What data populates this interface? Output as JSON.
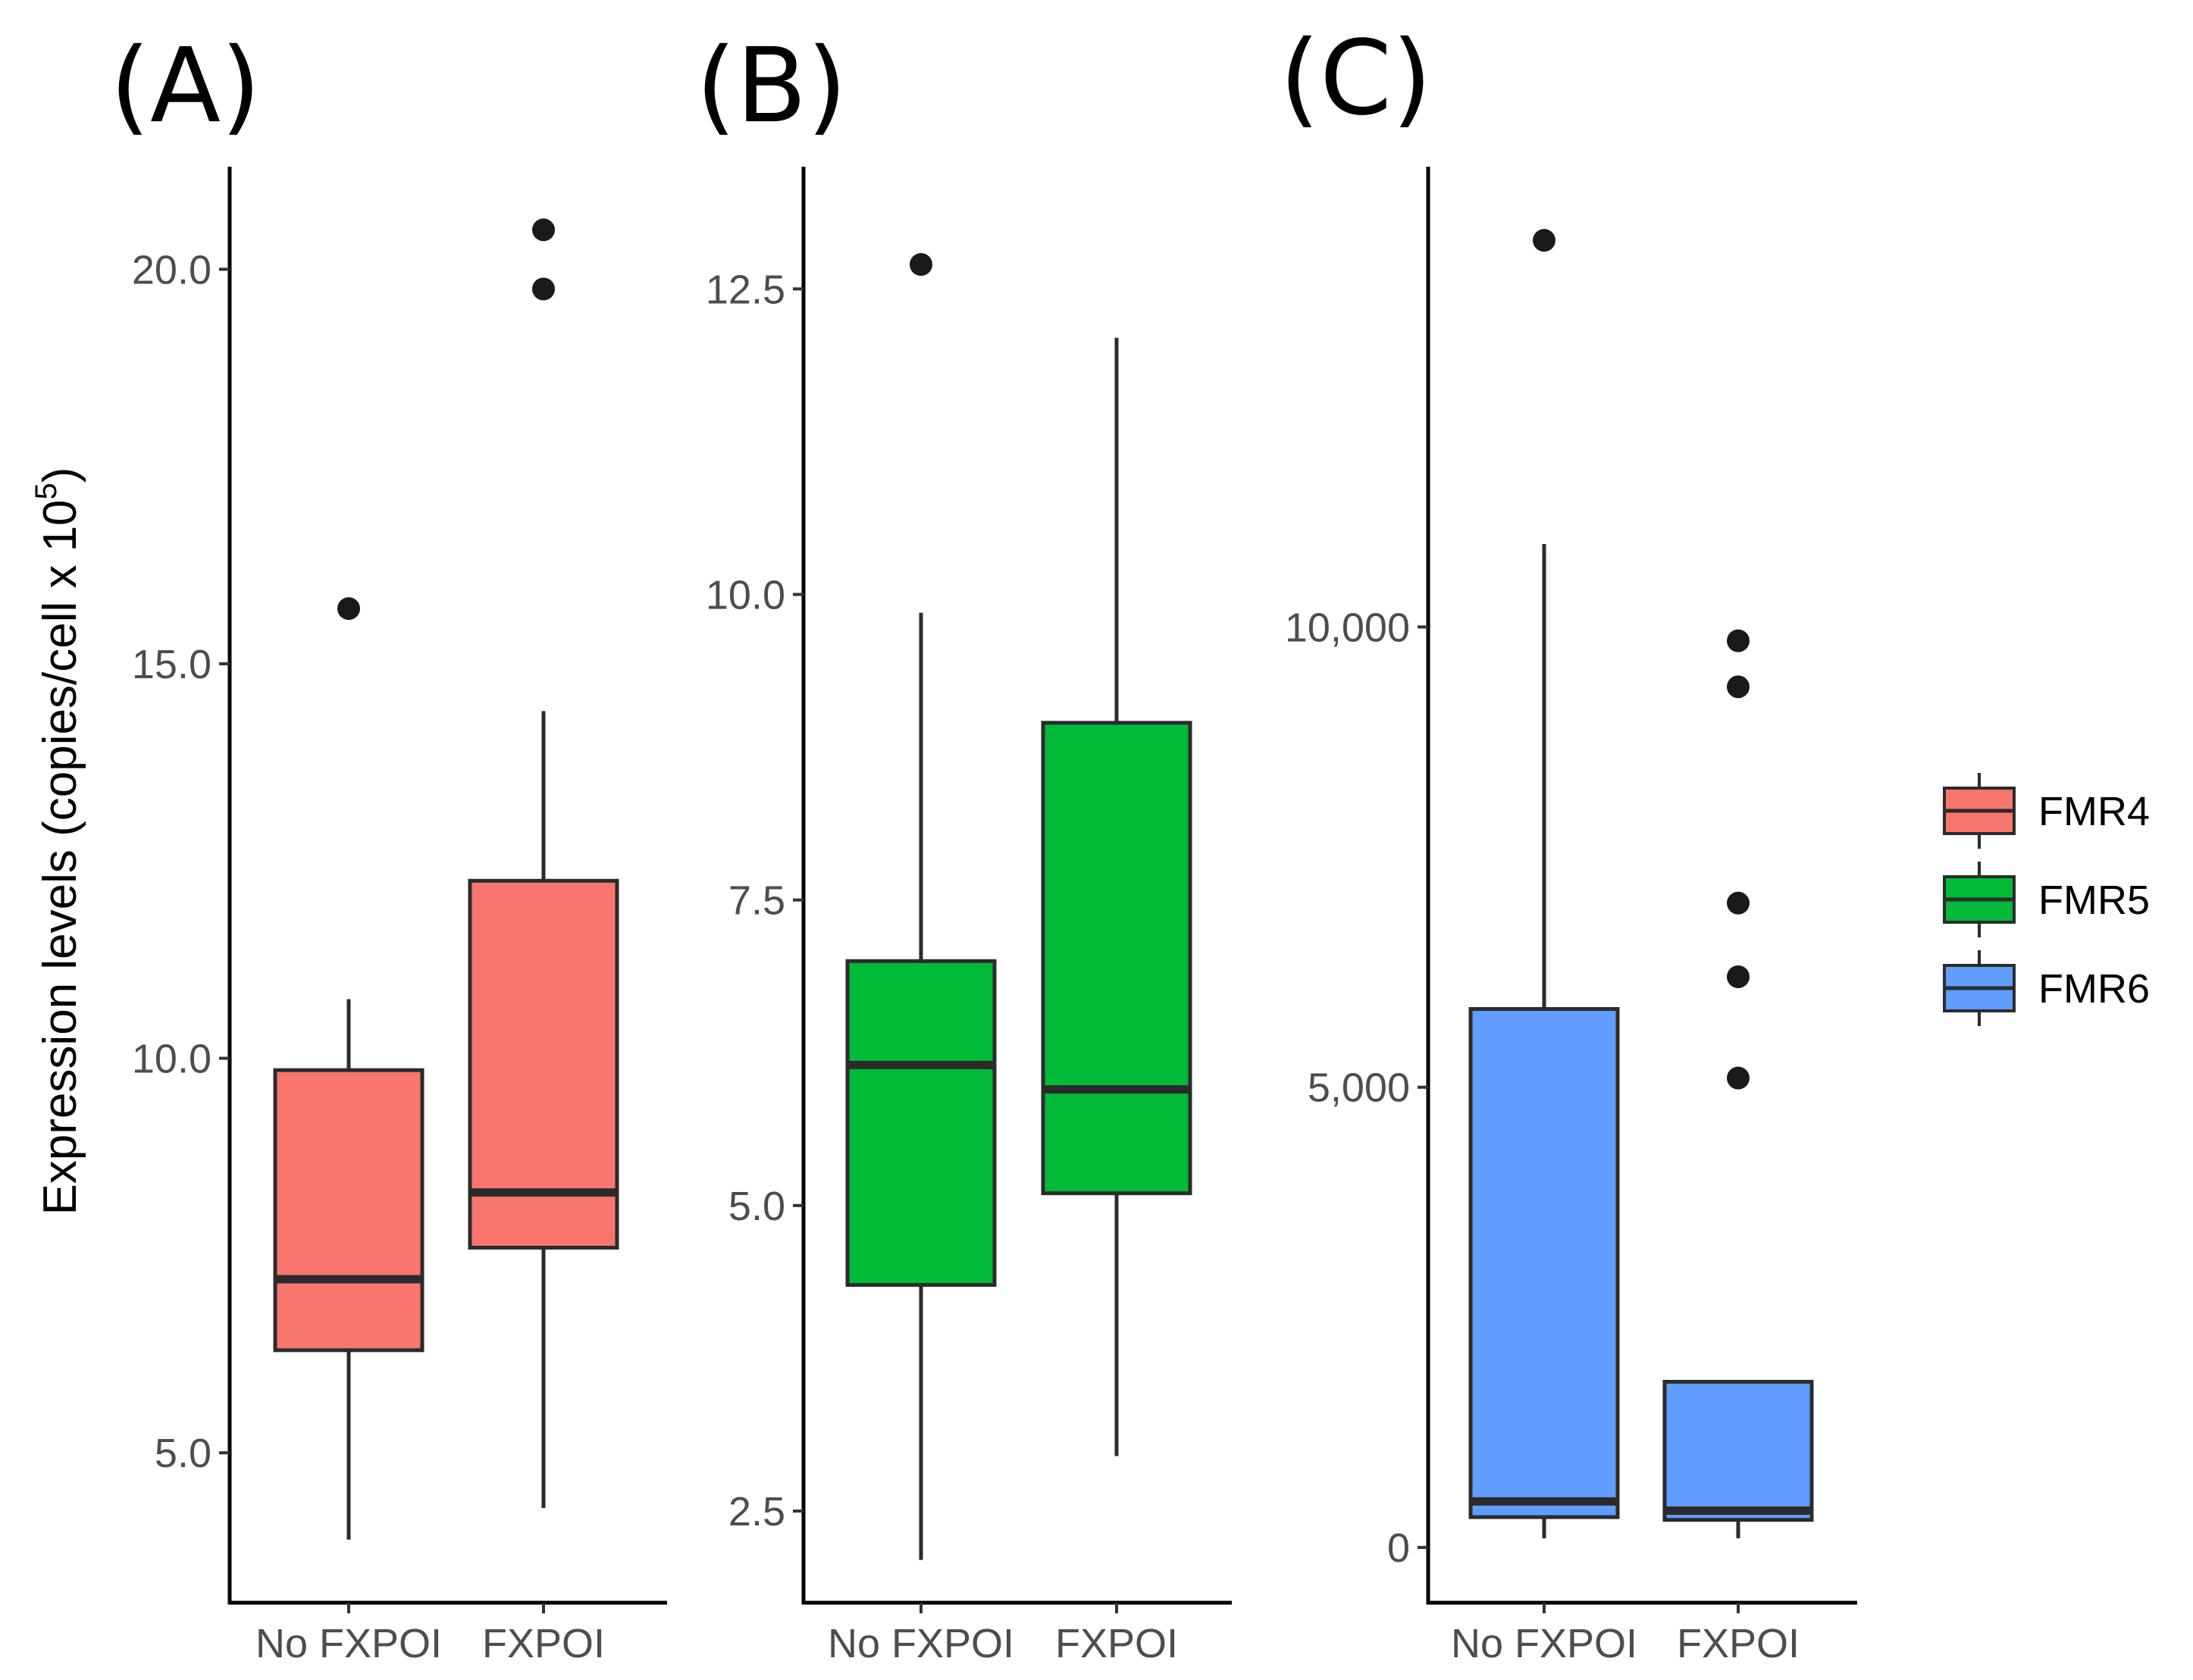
{
  "chart_data": [
    {
      "type": "boxplot",
      "panel": "(A)",
      "series_name": "FMR4",
      "color": "#F8766D",
      "ylabel": "Expression levels (copies/cell x 10",
      "ylabel_superscript": "5",
      "ylabel_close": ")",
      "ylim": [
        3.1,
        21.3
      ],
      "yticks": [
        5.0,
        10.0,
        15.0,
        20.0
      ],
      "ytick_labels": [
        "5.0",
        "10.0",
        "15.0",
        "20.0"
      ],
      "categories": [
        "No FXPOI",
        "FXPOI"
      ],
      "boxes": [
        {
          "category": "No FXPOI",
          "whisker_low": 3.9,
          "q1": 6.3,
          "median": 7.2,
          "q3": 9.85,
          "whisker_high": 10.75,
          "outliers": [
            15.7
          ]
        },
        {
          "category": "FXPOI",
          "whisker_low": 4.3,
          "q1": 7.6,
          "median": 8.3,
          "q3": 12.25,
          "whisker_high": 14.4,
          "outliers": [
            19.75,
            20.5
          ]
        }
      ]
    },
    {
      "type": "boxplot",
      "panel": "(B)",
      "series_name": "FMR5",
      "color": "#00BA38",
      "ylim": [
        1.75,
        13.5
      ],
      "yticks": [
        2.5,
        5.0,
        7.5,
        10.0,
        12.5
      ],
      "ytick_labels": [
        "2.5",
        "5.0",
        "7.5",
        "10.0",
        "12.5"
      ],
      "categories": [
        "No FXPOI",
        "FXPOI"
      ],
      "boxes": [
        {
          "category": "No FXPOI",
          "whisker_low": 2.1,
          "q1": 4.35,
          "median": 6.15,
          "q3": 7.0,
          "whisker_high": 9.85,
          "outliers": [
            12.7
          ]
        },
        {
          "category": "FXPOI",
          "whisker_low": 2.95,
          "q1": 5.1,
          "median": 5.95,
          "q3": 8.95,
          "whisker_high": 12.1,
          "outliers": []
        }
      ]
    },
    {
      "type": "boxplot",
      "panel": "(C)",
      "series_name": "FMR6",
      "color": "#619CFF",
      "ylim": [
        -600,
        15000
      ],
      "yticks": [
        0,
        5000,
        10000
      ],
      "ytick_labels": [
        "0",
        "5,000",
        "10,000"
      ],
      "categories": [
        "No FXPOI",
        "FXPOI"
      ],
      "boxes": [
        {
          "category": "No FXPOI",
          "whisker_low": 100,
          "q1": 330,
          "median": 500,
          "q3": 5850,
          "whisker_high": 10900,
          "outliers": [
            14200
          ]
        },
        {
          "category": "FXPOI",
          "whisker_low": 100,
          "q1": 300,
          "median": 400,
          "q3": 1800,
          "whisker_high": 1800,
          "outliers": [
            5100,
            6200,
            7000,
            9350,
            9850
          ]
        }
      ]
    }
  ],
  "legend": {
    "items": [
      {
        "label": "FMR4",
        "color": "#F8766D"
      },
      {
        "label": "FMR5",
        "color": "#00BA38"
      },
      {
        "label": "FMR6",
        "color": "#619CFF"
      }
    ]
  }
}
